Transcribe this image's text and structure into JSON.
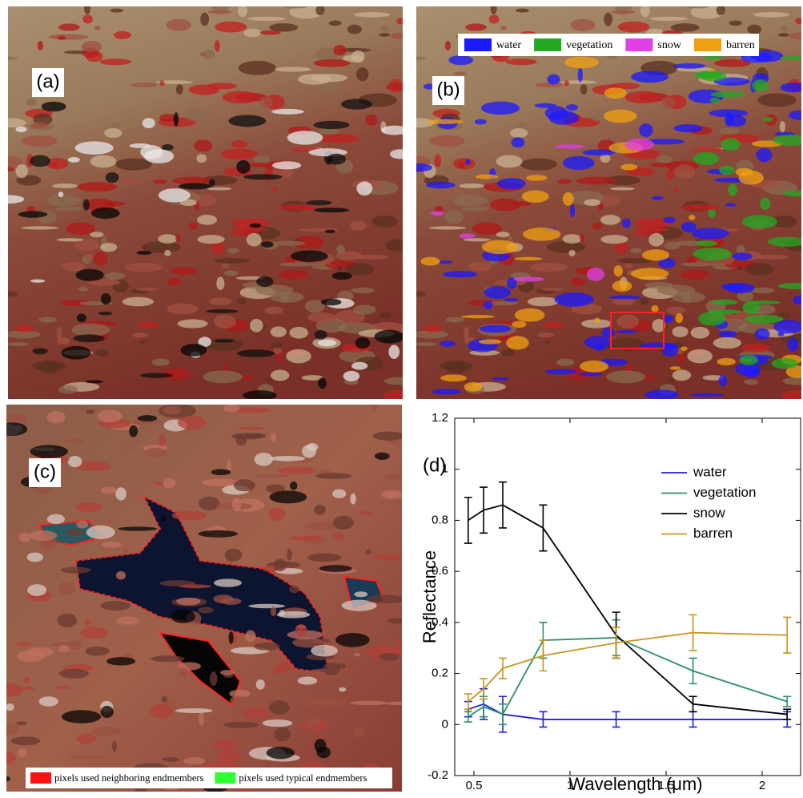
{
  "panels": {
    "a": {
      "label": "(a)"
    },
    "b": {
      "label": "(b)",
      "legend": [
        {
          "name": "water",
          "color": "#1a1aff"
        },
        {
          "name": "vegetation",
          "color": "#22aa22"
        },
        {
          "name": "snow",
          "color": "#e040e8"
        },
        {
          "name": "barren",
          "color": "#f0a010"
        }
      ]
    },
    "c": {
      "label": "(c)",
      "legend": [
        {
          "name": "pixels used neighboring endmembers",
          "color": "#ff1010"
        },
        {
          "name": "pixels used typical endmembers",
          "color": "#30ff30"
        }
      ]
    }
  },
  "chart_data": {
    "type": "line",
    "panel_label": "(d)",
    "x_label": "Wavelength (μm)",
    "y_label": "Reflectance",
    "x": [
      0.47,
      0.55,
      0.65,
      0.86,
      1.24,
      1.64,
      2.13
    ],
    "xlim": [
      0.4,
      2.2
    ],
    "xticks": [
      0.5,
      1,
      1.5,
      2
    ],
    "ylim": [
      -0.2,
      1.2
    ],
    "yticks": [
      -0.2,
      0,
      0.2,
      0.4,
      0.6,
      0.8,
      1,
      1.2
    ],
    "series": [
      {
        "name": "water",
        "color": "#1f1fe0",
        "values": [
          0.06,
          0.08,
          0.04,
          0.02,
          0.02,
          0.02,
          0.02
        ],
        "errors": [
          0.03,
          0.06,
          0.07,
          0.03,
          0.03,
          0.03,
          0.03
        ]
      },
      {
        "name": "vegetation",
        "color": "#2a8f6a",
        "values": [
          0.03,
          0.07,
          0.04,
          0.33,
          0.34,
          0.21,
          0.09
        ],
        "errors": [
          0.02,
          0.04,
          0.04,
          0.07,
          0.07,
          0.05,
          0.02
        ]
      },
      {
        "name": "snow",
        "color": "#000000",
        "values": [
          0.8,
          0.84,
          0.86,
          0.77,
          0.35,
          0.08,
          0.04
        ],
        "errors": [
          0.09,
          0.09,
          0.09,
          0.09,
          0.09,
          0.03,
          0.02
        ]
      },
      {
        "name": "barren",
        "color": "#c8951a",
        "values": [
          0.09,
          0.14,
          0.22,
          0.27,
          0.32,
          0.36,
          0.35
        ],
        "errors": [
          0.03,
          0.04,
          0.04,
          0.06,
          0.06,
          0.07,
          0.07
        ]
      }
    ]
  }
}
